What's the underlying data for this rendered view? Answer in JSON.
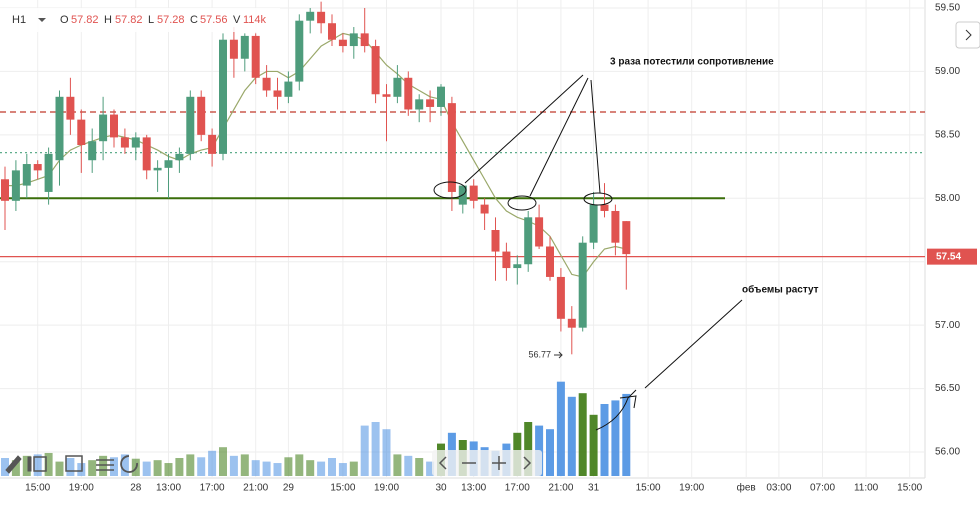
{
  "chart_data": {
    "type": "candlestick",
    "header": {
      "interval": "H1",
      "o_label": "O",
      "o": 57.82,
      "h_label": "H",
      "h": 57.82,
      "l_label": "L",
      "l": 57.28,
      "c_label": "C",
      "c": 57.56,
      "v_label": "V",
      "v": "114k"
    },
    "candles": [
      [
        58.15,
        58.25,
        57.75,
        57.98
      ],
      [
        57.98,
        58.3,
        57.9,
        58.22
      ],
      [
        58.1,
        58.35,
        58.0,
        58.27
      ],
      [
        58.27,
        58.3,
        58.15,
        58.22
      ],
      [
        58.05,
        58.4,
        57.95,
        58.35
      ],
      [
        58.3,
        58.85,
        58.1,
        58.8
      ],
      [
        58.8,
        58.95,
        58.5,
        58.62
      ],
      [
        58.62,
        58.7,
        58.2,
        58.42
      ],
      [
        58.3,
        58.55,
        58.2,
        58.45
      ],
      [
        58.45,
        58.8,
        58.3,
        58.66
      ],
      [
        58.66,
        58.7,
        58.4,
        58.48
      ],
      [
        58.48,
        58.55,
        58.35,
        58.4
      ],
      [
        58.4,
        58.52,
        58.3,
        58.48
      ],
      [
        58.48,
        58.5,
        58.15,
        58.22
      ],
      [
        58.22,
        58.3,
        58.05,
        58.24
      ],
      [
        58.24,
        58.35,
        58.0,
        58.3
      ],
      [
        58.3,
        58.4,
        58.2,
        58.35
      ],
      [
        58.35,
        58.85,
        58.3,
        58.8
      ],
      [
        58.8,
        58.85,
        58.45,
        58.5
      ],
      [
        58.5,
        58.55,
        58.25,
        58.35
      ],
      [
        58.35,
        59.3,
        58.3,
        59.25
      ],
      [
        59.25,
        59.35,
        58.95,
        59.1
      ],
      [
        59.1,
        59.3,
        59.0,
        59.28
      ],
      [
        59.28,
        59.3,
        58.9,
        58.95
      ],
      [
        58.95,
        59.05,
        58.8,
        58.85
      ],
      [
        58.85,
        58.95,
        58.7,
        58.8
      ],
      [
        58.8,
        59.0,
        58.75,
        58.92
      ],
      [
        58.92,
        59.45,
        58.85,
        59.4
      ],
      [
        59.4,
        59.5,
        59.3,
        59.47
      ],
      [
        59.47,
        59.55,
        59.3,
        59.38
      ],
      [
        59.38,
        59.45,
        59.2,
        59.25
      ],
      [
        59.25,
        59.3,
        59.15,
        59.2
      ],
      [
        59.2,
        59.35,
        59.1,
        59.3
      ],
      [
        59.3,
        59.5,
        59.15,
        59.2
      ],
      [
        59.2,
        59.25,
        58.75,
        58.82
      ],
      [
        58.82,
        58.9,
        58.45,
        58.8
      ],
      [
        58.8,
        59.05,
        58.75,
        58.95
      ],
      [
        58.95,
        59.0,
        58.65,
        58.7
      ],
      [
        58.7,
        58.82,
        58.6,
        58.78
      ],
      [
        58.78,
        58.85,
        58.6,
        58.72
      ],
      [
        58.72,
        58.9,
        58.65,
        58.88
      ],
      [
        58.75,
        58.8,
        57.9,
        58.05
      ],
      [
        57.95,
        58.1,
        57.88,
        58.1
      ],
      [
        58.1,
        58.15,
        57.92,
        57.98
      ],
      [
        57.95,
        58.0,
        57.75,
        57.88
      ],
      [
        57.75,
        57.85,
        57.35,
        57.58
      ],
      [
        57.58,
        57.65,
        57.35,
        57.45
      ],
      [
        57.45,
        57.55,
        57.32,
        57.48
      ],
      [
        57.48,
        57.9,
        57.42,
        57.85
      ],
      [
        57.85,
        57.95,
        57.6,
        57.62
      ],
      [
        57.62,
        57.7,
        57.35,
        57.38
      ],
      [
        57.38,
        57.45,
        56.95,
        57.05
      ],
      [
        57.05,
        57.15,
        56.77,
        56.98
      ],
      [
        56.98,
        57.7,
        56.95,
        57.65
      ],
      [
        57.65,
        58.05,
        57.6,
        57.95
      ],
      [
        57.95,
        58.12,
        57.85,
        57.9
      ],
      [
        57.9,
        57.95,
        57.55,
        57.65
      ],
      [
        57.82,
        57.82,
        57.28,
        57.56
      ]
    ],
    "volumes": [
      25,
      22,
      28,
      30,
      32,
      20,
      25,
      18,
      22,
      28,
      26,
      30,
      24,
      20,
      22,
      18,
      25,
      30,
      26,
      35,
      40,
      28,
      30,
      22,
      20,
      18,
      26,
      30,
      22,
      20,
      25,
      18,
      20,
      70,
      75,
      65,
      30,
      28,
      25,
      20,
      45,
      60,
      50,
      48,
      40,
      35,
      45,
      60,
      75,
      70,
      65,
      131,
      110,
      115,
      85,
      100,
      105,
      114
    ],
    "ma": [
      58.1,
      58.1,
      58.12,
      58.15,
      58.18,
      58.3,
      58.38,
      58.42,
      58.45,
      58.48,
      58.5,
      58.48,
      58.46,
      58.42,
      58.38,
      58.33,
      58.3,
      58.35,
      58.38,
      58.4,
      58.55,
      58.7,
      58.85,
      58.95,
      59.0,
      59.0,
      58.95,
      59.0,
      59.1,
      59.2,
      59.25,
      59.3,
      59.28,
      59.25,
      59.15,
      59.05,
      58.98,
      58.9,
      58.85,
      58.8,
      58.78,
      58.6,
      58.45,
      58.3,
      58.15,
      58.0,
      57.9,
      57.85,
      57.82,
      57.78,
      57.7,
      57.55,
      57.4,
      57.38,
      57.5,
      57.6,
      57.62,
      57.6
    ],
    "colors": {
      "up": "#4e9c7c",
      "down": "#e05350",
      "volume_up": "#3d7a12",
      "volume_down": "#4a90e2",
      "ma": "#9aa86a"
    },
    "ylim": [
      56.0,
      59.5
    ],
    "yticks": [
      {
        "value": 56.0,
        "label": "56.00"
      },
      {
        "value": 56.5,
        "label": "56.50"
      },
      {
        "value": 57.0,
        "label": "57.00"
      },
      {
        "value": 57.5,
        "label": "57.50"
      },
      {
        "value": 58.0,
        "label": "58.00"
      },
      {
        "value": 58.5,
        "label": "58.50"
      },
      {
        "value": 59.0,
        "label": "59.00"
      },
      {
        "value": 59.5,
        "label": "59.50"
      }
    ],
    "xticks": [
      {
        "value": 3,
        "label": "15:00"
      },
      {
        "value": 7,
        "label": "19:00"
      },
      {
        "value": 12,
        "label": "28"
      },
      {
        "value": 15,
        "label": "13:00"
      },
      {
        "value": 19,
        "label": "17:00"
      },
      {
        "value": 23,
        "label": "21:00"
      },
      {
        "value": 26,
        "label": "29"
      },
      {
        "value": 31,
        "label": "15:00"
      },
      {
        "value": 35,
        "label": "19:00"
      },
      {
        "value": 40,
        "label": "30"
      },
      {
        "value": 43,
        "label": "13:00"
      },
      {
        "value": 47,
        "label": "17:00"
      },
      {
        "value": 51,
        "label": "21:00"
      },
      {
        "value": 54,
        "label": "31"
      },
      {
        "value": 59,
        "label": "15:00"
      },
      {
        "value": 63,
        "label": "19:00"
      },
      {
        "value": 68,
        "label": "фев"
      },
      {
        "value": 71,
        "label": "03:00"
      },
      {
        "value": 75,
        "label": "07:00"
      },
      {
        "value": 79,
        "label": "11:00"
      },
      {
        "value": 83,
        "label": "15:00"
      }
    ],
    "levels": [
      {
        "value": 58.0,
        "color": "#3a6e0a",
        "style": "solid"
      },
      {
        "value": 58.68,
        "color": "#c0392b",
        "style": "dashed"
      },
      {
        "value": 58.36,
        "color": "#5fae8c",
        "style": "dotted"
      },
      {
        "value": 57.54,
        "color": "#e05350",
        "style": "solid"
      }
    ],
    "current_price": 57.54,
    "low_marker": 56.77,
    "grid": true,
    "annotations": [
      "3 раза потестили сопротивление",
      "объемы растут"
    ]
  }
}
